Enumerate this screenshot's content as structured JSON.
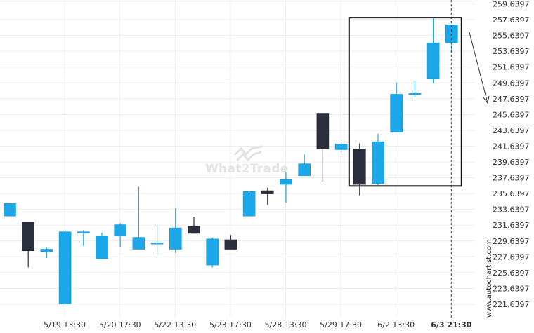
{
  "chart_data": {
    "type": "candlestick",
    "colors": {
      "up": "#1ba7e8",
      "down": "#2b2f3b",
      "grid": "#ececec",
      "box": "#111111"
    },
    "y_ticks": [
      "259.6397",
      "257.6397",
      "255.6397",
      "253.6397",
      "251.6397",
      "249.6397",
      "247.6397",
      "245.6397",
      "243.6397",
      "241.6397",
      "239.6397",
      "237.6397",
      "235.6397",
      "233.6397",
      "231.6397",
      "229.6397",
      "227.6397",
      "225.6397",
      "223.6397",
      "221.6397"
    ],
    "ylim": [
      220.8,
      260.2
    ],
    "x_ticks": [
      {
        "label": "5/19 13:30",
        "index": 3
      },
      {
        "label": "5/20 17:30",
        "index": 6
      },
      {
        "label": "5/22 13:30",
        "index": 9
      },
      {
        "label": "5/23 17:30",
        "index": 12
      },
      {
        "label": "5/28 13:30",
        "index": 15
      },
      {
        "label": "5/29 17:30",
        "index": 18
      },
      {
        "label": "6/2 13:30",
        "index": 21
      },
      {
        "label": "6/3 21:30",
        "index": 24,
        "bold": true
      }
    ],
    "candles": [
      {
        "o": 232.8,
        "h": 234.4,
        "l": 232.8,
        "c": 234.4
      },
      {
        "o": 232.0,
        "h": 232.0,
        "l": 226.3,
        "c": 228.4
      },
      {
        "o": 228.3,
        "h": 228.8,
        "l": 227.5,
        "c": 228.6
      },
      {
        "o": 221.7,
        "h": 231.0,
        "l": 221.6,
        "c": 230.8
      },
      {
        "o": 230.8,
        "h": 231.0,
        "l": 229.0,
        "c": 230.8
      },
      {
        "o": 227.4,
        "h": 230.7,
        "l": 227.4,
        "c": 230.3
      },
      {
        "o": 230.3,
        "h": 231.9,
        "l": 228.9,
        "c": 231.7
      },
      {
        "o": 228.6,
        "h": 236.5,
        "l": 228.6,
        "c": 230.1
      },
      {
        "o": 229.4,
        "h": 231.6,
        "l": 227.9,
        "c": 229.4
      },
      {
        "o": 228.6,
        "h": 233.8,
        "l": 228.1,
        "c": 231.3
      },
      {
        "o": 231.5,
        "h": 232.7,
        "l": 230.6,
        "c": 230.6
      },
      {
        "o": 226.6,
        "h": 230.1,
        "l": 226.3,
        "c": 229.9
      },
      {
        "o": 229.8,
        "h": 230.4,
        "l": 228.6,
        "c": 228.6
      },
      {
        "o": 232.8,
        "h": 236.0,
        "l": 232.8,
        "c": 235.9
      },
      {
        "o": 236.0,
        "h": 236.4,
        "l": 234.2,
        "c": 235.6
      },
      {
        "o": 236.8,
        "h": 238.3,
        "l": 234.5,
        "c": 237.4
      },
      {
        "o": 237.9,
        "h": 240.6,
        "l": 237.9,
        "c": 239.4
      },
      {
        "o": 245.8,
        "h": 245.8,
        "l": 237.1,
        "c": 241.3
      },
      {
        "o": 241.2,
        "h": 242.1,
        "l": 240.5,
        "c": 241.9
      },
      {
        "o": 241.3,
        "h": 242.0,
        "l": 235.4,
        "c": 236.8
      },
      {
        "o": 236.9,
        "h": 243.2,
        "l": 236.7,
        "c": 242.2
      },
      {
        "o": 243.4,
        "h": 249.7,
        "l": 243.4,
        "c": 248.2
      },
      {
        "o": 248.2,
        "h": 249.9,
        "l": 247.8,
        "c": 248.3
      },
      {
        "o": 250.2,
        "h": 257.8,
        "l": 249.6,
        "c": 254.7
      },
      {
        "o": 254.7,
        "h": 257.0,
        "l": 253.5,
        "c": 257.0
      }
    ],
    "watermark": "What2Trade",
    "credit": "www.autochartist.com"
  }
}
